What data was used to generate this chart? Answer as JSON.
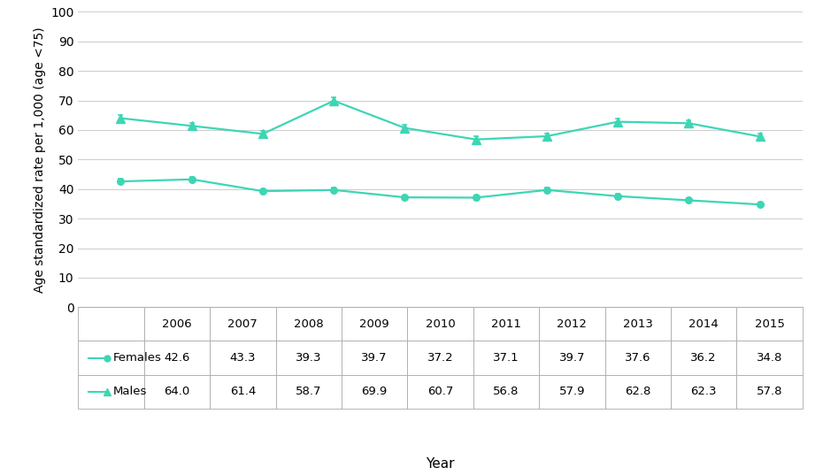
{
  "years": [
    2006,
    2007,
    2008,
    2009,
    2010,
    2011,
    2012,
    2013,
    2014,
    2015
  ],
  "females": [
    42.6,
    43.3,
    39.3,
    39.7,
    37.2,
    37.1,
    39.7,
    37.6,
    36.2,
    34.8
  ],
  "males": [
    64.0,
    61.4,
    58.7,
    69.9,
    60.7,
    56.8,
    57.9,
    62.8,
    62.3,
    57.8
  ],
  "females_err": [
    0.8,
    0.8,
    0.7,
    0.7,
    0.7,
    0.7,
    0.7,
    0.7,
    0.7,
    0.6
  ],
  "males_err": [
    1.2,
    1.1,
    1.1,
    1.3,
    1.1,
    1.0,
    1.0,
    1.1,
    1.1,
    1.0
  ],
  "line_color": "#3DD6B5",
  "ylabel": "Age standardized rate per 1,000 (age <75)",
  "xlabel": "Year",
  "ylim": [
    0,
    100
  ],
  "yticks": [
    0,
    10,
    20,
    30,
    40,
    50,
    60,
    70,
    80,
    90,
    100
  ],
  "legend_females": "Females",
  "legend_males": "Males",
  "bg": "#ffffff",
  "grid_color": "#cccccc",
  "table_females": [
    "42.6",
    "43.3",
    "39.3",
    "39.7",
    "37.2",
    "37.1",
    "39.7",
    "37.6",
    "36.2",
    "34.8"
  ],
  "table_males": [
    "64.0",
    "61.4",
    "58.7",
    "69.9",
    "60.7",
    "56.8",
    "57.9",
    "62.8",
    "62.3",
    "57.8"
  ],
  "spine_color": "#aaaaaa",
  "tick_label_fontsize": 10,
  "axis_label_fontsize": 10,
  "table_fontsize": 9.5
}
